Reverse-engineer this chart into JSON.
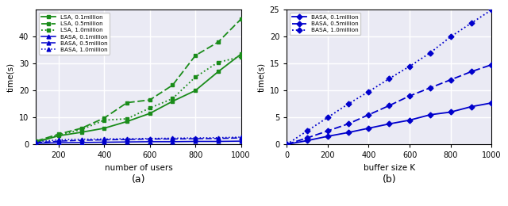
{
  "plot_a": {
    "xlabel": "number of users",
    "ylabel": "time(s)",
    "label_a": "(a)",
    "xlim": [
      100,
      1000
    ],
    "ylim": [
      0,
      50
    ],
    "yticks": [
      0,
      10,
      20,
      30,
      40
    ],
    "xticks": [
      200,
      400,
      600,
      800,
      1000
    ],
    "lsa_x": [
      100,
      200,
      300,
      400,
      500,
      600,
      700,
      800,
      900,
      1000
    ],
    "lsa_01": [
      0.8,
      3.2,
      4.5,
      6.0,
      8.5,
      11.5,
      16.0,
      20.0,
      27.0,
      33.5
    ],
    "lsa_05": [
      1.2,
      3.8,
      6.0,
      9.8,
      15.5,
      16.5,
      22.0,
      33.0,
      38.0,
      46.5
    ],
    "lsa_10": [
      1.0,
      3.5,
      5.5,
      9.0,
      9.5,
      13.5,
      17.0,
      25.0,
      30.5,
      32.5
    ],
    "basa_x": [
      100,
      200,
      300,
      400,
      500,
      600,
      700,
      800,
      900,
      1000
    ],
    "basa_01": [
      0.4,
      0.6,
      0.7,
      0.8,
      0.9,
      1.0,
      1.0,
      1.1,
      1.1,
      1.2
    ],
    "basa_05": [
      0.6,
      1.2,
      1.5,
      1.7,
      1.8,
      2.0,
      2.0,
      2.1,
      2.2,
      2.4
    ],
    "basa_10": [
      0.9,
      1.7,
      1.9,
      2.0,
      2.1,
      2.2,
      2.3,
      2.4,
      2.5,
      2.7
    ],
    "color_lsa": "#1a8c1a",
    "color_basa": "#0000cc"
  },
  "plot_b": {
    "xlabel": "buffer size K",
    "ylabel": "time(s)",
    "label_b": "(b)",
    "xlim": [
      0,
      1000
    ],
    "ylim": [
      0,
      25
    ],
    "yticks": [
      0,
      5,
      10,
      15,
      20,
      25
    ],
    "xticks": [
      0,
      200,
      400,
      600,
      800,
      1000
    ],
    "basa_x": [
      0,
      100,
      200,
      300,
      400,
      500,
      600,
      700,
      800,
      900,
      1000
    ],
    "basa_01": [
      0.0,
      0.7,
      1.5,
      2.2,
      3.0,
      3.8,
      4.5,
      5.5,
      6.0,
      7.0,
      7.7
    ],
    "basa_05": [
      0.0,
      1.2,
      2.5,
      3.8,
      5.5,
      7.2,
      9.0,
      10.5,
      12.0,
      13.5,
      14.8
    ],
    "basa_10": [
      0.0,
      2.5,
      5.0,
      7.5,
      9.8,
      12.2,
      14.5,
      17.0,
      20.0,
      22.5,
      25.0
    ],
    "color_basa": "#0000cc"
  },
  "background_color": "#eaeaf4",
  "grid_color": "white"
}
